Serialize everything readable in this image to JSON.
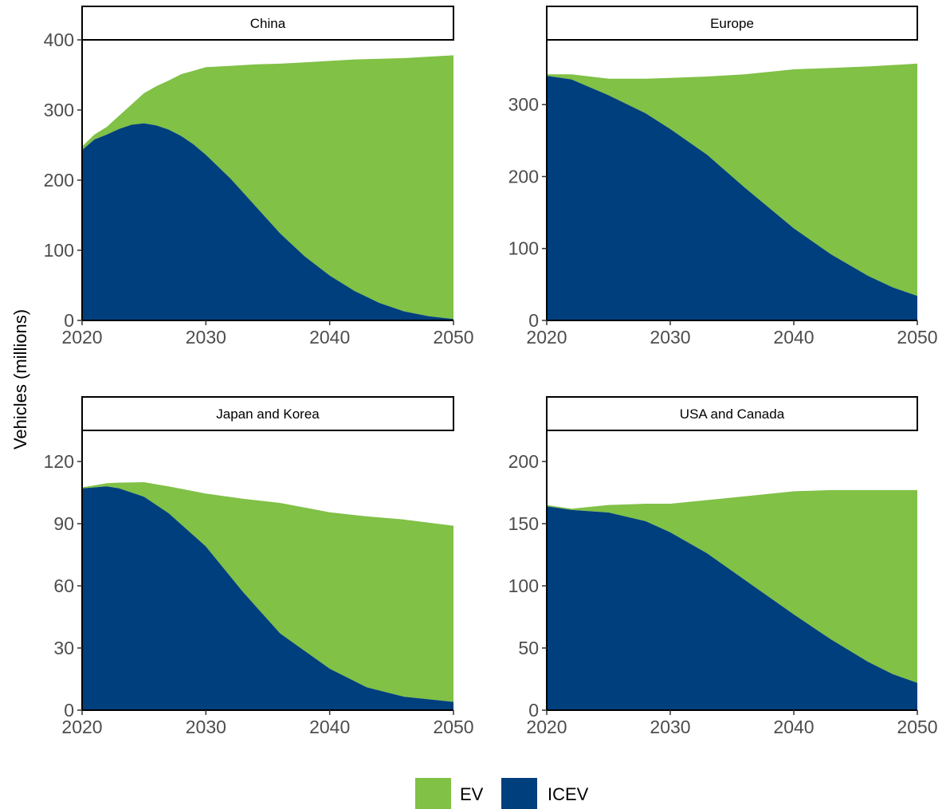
{
  "chart_data": {
    "type": "area",
    "stacked": true,
    "ylabel": "Vehicles (millions)",
    "xlabel": "",
    "x_ticks": [
      2020,
      2030,
      2040,
      2050
    ],
    "legend": {
      "position": "bottom",
      "entries": [
        {
          "name": "EV",
          "color": "#80c146"
        },
        {
          "name": "ICEV",
          "color": "#003f7d"
        }
      ]
    },
    "grid": false,
    "panels": [
      {
        "title": "China",
        "xlim": [
          2020,
          2050
        ],
        "ylim": [
          0,
          400
        ],
        "y_ticks": [
          0,
          100,
          200,
          300,
          400
        ],
        "x": [
          2020,
          2021,
          2022,
          2023,
          2024,
          2025,
          2026,
          2027,
          2028,
          2029,
          2030,
          2032,
          2034,
          2036,
          2038,
          2040,
          2042,
          2044,
          2046,
          2048,
          2050
        ],
        "series": [
          {
            "name": "ICEV",
            "values": [
              243,
              258,
              265,
              273,
              279,
              281,
              278,
              272,
              263,
              251,
              236,
              202,
              163,
              124,
              91,
              64,
              42,
              25,
              13,
              6,
              2
            ]
          },
          {
            "name": "EV",
            "values": [
              5,
              7,
              11,
              19,
              29,
              43,
              56,
              70,
              88,
              105,
              125,
              161,
              202,
              242,
              277,
              306,
              330,
              348,
              361,
              370,
              376
            ]
          }
        ]
      },
      {
        "title": "Europe",
        "xlim": [
          2020,
          2050
        ],
        "ylim": [
          0,
          390
        ],
        "y_ticks": [
          0,
          100,
          200,
          300
        ],
        "x": [
          2020,
          2022,
          2025,
          2028,
          2030,
          2033,
          2036,
          2040,
          2043,
          2046,
          2048,
          2050
        ],
        "series": [
          {
            "name": "ICEV",
            "values": [
              340,
              335,
              313,
              288,
              266,
              230,
              185,
              128,
              92,
              62,
              46,
              34
            ]
          },
          {
            "name": "EV",
            "values": [
              2,
              7,
              23,
              48,
              71,
              109,
              157,
              221,
              259,
              291,
              309,
              323
            ]
          }
        ]
      },
      {
        "title": "Japan and Korea",
        "xlim": [
          2020,
          2050
        ],
        "ylim": [
          0,
          135
        ],
        "y_ticks": [
          0,
          30,
          60,
          90,
          120
        ],
        "x": [
          2020,
          2022,
          2023,
          2025,
          2027,
          2030,
          2033,
          2036,
          2040,
          2043,
          2046,
          2050
        ],
        "series": [
          {
            "name": "ICEV",
            "values": [
              107,
              108,
              107,
              103,
              95,
              79,
              57,
              37,
              20,
              11,
              6.5,
              4
            ]
          },
          {
            "name": "EV",
            "values": [
              0.5,
              1.5,
              2.8,
              7,
              13,
              25.5,
              45,
              63,
              75.5,
              82.5,
              85.5,
              85
            ]
          }
        ]
      },
      {
        "title": "USA and Canada",
        "xlim": [
          2020,
          2050
        ],
        "ylim": [
          0,
          225
        ],
        "y_ticks": [
          0,
          50,
          100,
          150,
          200
        ],
        "x": [
          2020,
          2022,
          2025,
          2028,
          2030,
          2033,
          2036,
          2040,
          2043,
          2046,
          2048,
          2050
        ],
        "series": [
          {
            "name": "ICEV",
            "values": [
              164,
              161,
              159,
              152,
              143,
              126,
              105,
              77,
              57,
              39,
              29,
              22
            ]
          },
          {
            "name": "EV",
            "values": [
              1,
              1,
              6,
              14,
              23,
              43,
              67,
              99,
              120,
              138,
              148,
              155
            ]
          }
        ]
      }
    ]
  }
}
